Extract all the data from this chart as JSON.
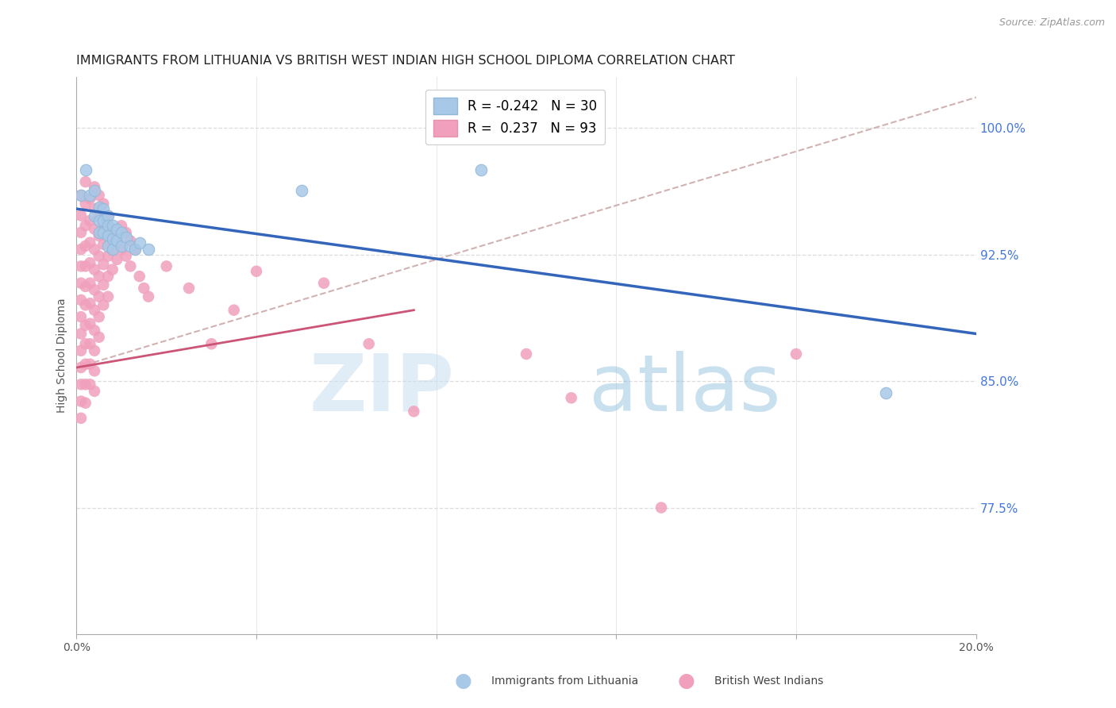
{
  "title": "IMMIGRANTS FROM LITHUANIA VS BRITISH WEST INDIAN HIGH SCHOOL DIPLOMA CORRELATION CHART",
  "source": "Source: ZipAtlas.com",
  "ylabel": "High School Diploma",
  "watermark_zip": "ZIP",
  "watermark_atlas": "atlas",
  "xlim": [
    0.0,
    0.2
  ],
  "ylim": [
    0.7,
    1.03
  ],
  "xticks": [
    0.0,
    0.04,
    0.08,
    0.12,
    0.16,
    0.2
  ],
  "xtick_labels": [
    "0.0%",
    "",
    "",
    "",
    "",
    "20.0%"
  ],
  "yticks": [
    0.775,
    0.85,
    0.925,
    1.0
  ],
  "ytick_labels": [
    "77.5%",
    "85.0%",
    "92.5%",
    "100.0%"
  ],
  "legend_r_blue": "-0.242",
  "legend_n_blue": "30",
  "legend_r_pink": "0.237",
  "legend_n_pink": "93",
  "blue_color": "#a8c8e8",
  "pink_color": "#f0a0bc",
  "blue_line_color": "#3366bb",
  "pink_line_color": "#cc5577",
  "dashed_line_color": "#ccaaaa",
  "blue_points": [
    [
      0.001,
      0.96
    ],
    [
      0.002,
      0.975
    ],
    [
      0.003,
      0.96
    ],
    [
      0.004,
      0.963
    ],
    [
      0.004,
      0.948
    ],
    [
      0.005,
      0.953
    ],
    [
      0.005,
      0.945
    ],
    [
      0.005,
      0.938
    ],
    [
      0.006,
      0.952
    ],
    [
      0.006,
      0.945
    ],
    [
      0.006,
      0.938
    ],
    [
      0.007,
      0.948
    ],
    [
      0.007,
      0.942
    ],
    [
      0.007,
      0.936
    ],
    [
      0.007,
      0.93
    ],
    [
      0.008,
      0.942
    ],
    [
      0.008,
      0.934
    ],
    [
      0.008,
      0.928
    ],
    [
      0.009,
      0.94
    ],
    [
      0.009,
      0.933
    ],
    [
      0.01,
      0.938
    ],
    [
      0.01,
      0.93
    ],
    [
      0.011,
      0.935
    ],
    [
      0.012,
      0.93
    ],
    [
      0.013,
      0.928
    ],
    [
      0.014,
      0.932
    ],
    [
      0.016,
      0.928
    ],
    [
      0.05,
      0.963
    ],
    [
      0.09,
      0.975
    ],
    [
      0.18,
      0.843
    ]
  ],
  "pink_points": [
    [
      0.001,
      0.96
    ],
    [
      0.001,
      0.948
    ],
    [
      0.001,
      0.938
    ],
    [
      0.001,
      0.928
    ],
    [
      0.001,
      0.918
    ],
    [
      0.001,
      0.908
    ],
    [
      0.001,
      0.898
    ],
    [
      0.001,
      0.888
    ],
    [
      0.001,
      0.878
    ],
    [
      0.001,
      0.868
    ],
    [
      0.001,
      0.858
    ],
    [
      0.001,
      0.848
    ],
    [
      0.001,
      0.838
    ],
    [
      0.001,
      0.828
    ],
    [
      0.002,
      0.968
    ],
    [
      0.002,
      0.955
    ],
    [
      0.002,
      0.942
    ],
    [
      0.002,
      0.93
    ],
    [
      0.002,
      0.918
    ],
    [
      0.002,
      0.906
    ],
    [
      0.002,
      0.895
    ],
    [
      0.002,
      0.883
    ],
    [
      0.002,
      0.872
    ],
    [
      0.002,
      0.86
    ],
    [
      0.002,
      0.848
    ],
    [
      0.002,
      0.837
    ],
    [
      0.003,
      0.958
    ],
    [
      0.003,
      0.945
    ],
    [
      0.003,
      0.932
    ],
    [
      0.003,
      0.92
    ],
    [
      0.003,
      0.908
    ],
    [
      0.003,
      0.896
    ],
    [
      0.003,
      0.884
    ],
    [
      0.003,
      0.872
    ],
    [
      0.003,
      0.86
    ],
    [
      0.003,
      0.848
    ],
    [
      0.004,
      0.965
    ],
    [
      0.004,
      0.952
    ],
    [
      0.004,
      0.94
    ],
    [
      0.004,
      0.928
    ],
    [
      0.004,
      0.916
    ],
    [
      0.004,
      0.904
    ],
    [
      0.004,
      0.892
    ],
    [
      0.004,
      0.88
    ],
    [
      0.004,
      0.868
    ],
    [
      0.004,
      0.856
    ],
    [
      0.004,
      0.844
    ],
    [
      0.005,
      0.96
    ],
    [
      0.005,
      0.948
    ],
    [
      0.005,
      0.936
    ],
    [
      0.005,
      0.924
    ],
    [
      0.005,
      0.912
    ],
    [
      0.005,
      0.9
    ],
    [
      0.005,
      0.888
    ],
    [
      0.005,
      0.876
    ],
    [
      0.006,
      0.955
    ],
    [
      0.006,
      0.943
    ],
    [
      0.006,
      0.931
    ],
    [
      0.006,
      0.919
    ],
    [
      0.006,
      0.907
    ],
    [
      0.006,
      0.895
    ],
    [
      0.007,
      0.948
    ],
    [
      0.007,
      0.936
    ],
    [
      0.007,
      0.924
    ],
    [
      0.007,
      0.912
    ],
    [
      0.007,
      0.9
    ],
    [
      0.008,
      0.94
    ],
    [
      0.008,
      0.928
    ],
    [
      0.008,
      0.916
    ],
    [
      0.009,
      0.935
    ],
    [
      0.009,
      0.922
    ],
    [
      0.01,
      0.942
    ],
    [
      0.01,
      0.928
    ],
    [
      0.011,
      0.938
    ],
    [
      0.011,
      0.924
    ],
    [
      0.012,
      0.933
    ],
    [
      0.012,
      0.918
    ],
    [
      0.013,
      0.928
    ],
    [
      0.014,
      0.912
    ],
    [
      0.015,
      0.905
    ],
    [
      0.016,
      0.9
    ],
    [
      0.02,
      0.918
    ],
    [
      0.025,
      0.905
    ],
    [
      0.03,
      0.872
    ],
    [
      0.035,
      0.892
    ],
    [
      0.04,
      0.915
    ],
    [
      0.055,
      0.908
    ],
    [
      0.065,
      0.872
    ],
    [
      0.075,
      0.832
    ],
    [
      0.1,
      0.866
    ],
    [
      0.11,
      0.84
    ],
    [
      0.13,
      0.775
    ],
    [
      0.16,
      0.866
    ]
  ],
  "blue_trend_x": [
    0.0,
    0.2
  ],
  "blue_trend_y": [
    0.952,
    0.878
  ],
  "pink_trend_x": [
    0.0,
    0.075
  ],
  "pink_trend_y": [
    0.858,
    0.892
  ],
  "dashed_trend_x": [
    0.0,
    0.2
  ],
  "dashed_trend_y": [
    0.858,
    1.018
  ],
  "background_color": "#ffffff",
  "grid_color": "#dddddd",
  "title_fontsize": 11.5,
  "axis_label_fontsize": 10,
  "tick_fontsize": 10,
  "legend_fontsize": 12,
  "source_fontsize": 9
}
